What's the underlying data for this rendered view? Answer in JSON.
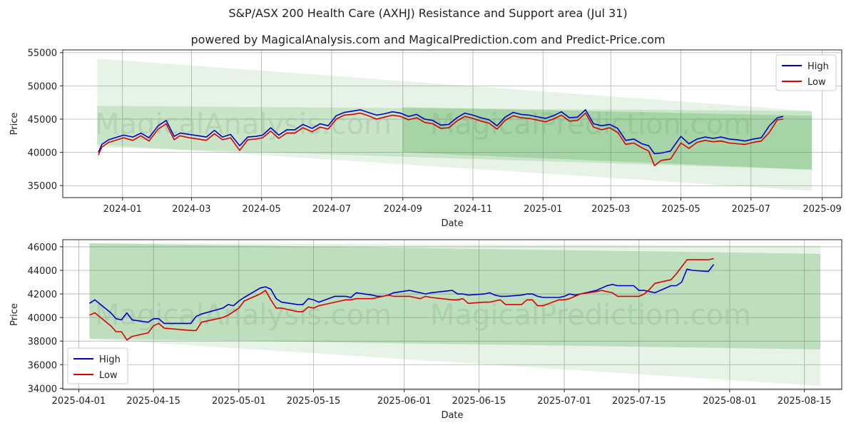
{
  "title": "S&P/ASX 200 Health Care (AXHJ) Resistance and Support area (Jul 31)",
  "subtitle": "powered by MagicalAnalysis.com and MagicalPrediction.com and Predict-Price.com",
  "watermarks": [
    "MagicalAnalysis.com",
    "MagicalPrediction.com"
  ],
  "colors": {
    "high": "#0000cc",
    "low": "#dd0000",
    "band": "#2e9a2e",
    "grid": "#b0b0b0"
  },
  "chart_data": [
    {
      "type": "line",
      "xlabel": "Date",
      "ylabel": "Price",
      "x_ticks": [
        "2024-01",
        "2024-03",
        "2024-05",
        "2024-07",
        "2024-09",
        "2024-11",
        "2025-01",
        "2025-03",
        "2025-05",
        "2025-07",
        "2025-09"
      ],
      "y_ticks": [
        35000,
        40000,
        45000,
        50000,
        55000
      ],
      "xlim": [
        "2023-11-10",
        "2025-09-18"
      ],
      "ylim": [
        33200,
        55400
      ],
      "grid": true,
      "legend": {
        "position": "top-right",
        "entries": [
          "High",
          "Low"
        ]
      },
      "bands": [
        {
          "name": "wide band",
          "shade": "light",
          "x": [
            "2023-12-10",
            "2025-08-23"
          ],
          "upper": [
            54100,
            46200
          ],
          "lower": [
            41200,
            34200
          ]
        },
        {
          "name": "medium band",
          "shade": "medium",
          "x": [
            "2023-12-10",
            "2025-08-23"
          ],
          "upper": [
            47000,
            46200
          ],
          "lower": [
            40800,
            37400
          ]
        },
        {
          "name": "inner band",
          "shade": "dark",
          "x": [
            "2024-09-01",
            "2025-08-23"
          ],
          "upper": [
            46800,
            45500
          ],
          "lower": [
            40000,
            37400
          ]
        }
      ],
      "series": [
        {
          "name": "High",
          "x": [
            "2023-12-11",
            "2023-12-14",
            "2023-12-20",
            "2024-01-02",
            "2024-01-10",
            "2024-01-17",
            "2024-01-24",
            "2024-02-01",
            "2024-02-08",
            "2024-02-15",
            "2024-02-20",
            "2024-02-28",
            "2024-03-07",
            "2024-03-14",
            "2024-03-21",
            "2024-03-28",
            "2024-04-04",
            "2024-04-12",
            "2024-04-19",
            "2024-04-26",
            "2024-05-02",
            "2024-05-09",
            "2024-05-16",
            "2024-05-23",
            "2024-05-30",
            "2024-06-06",
            "2024-06-14",
            "2024-06-21",
            "2024-06-28",
            "2024-07-05",
            "2024-07-12",
            "2024-07-19",
            "2024-07-26",
            "2024-08-02",
            "2024-08-09",
            "2024-08-16",
            "2024-08-23",
            "2024-08-30",
            "2024-09-06",
            "2024-09-13",
            "2024-09-20",
            "2024-09-27",
            "2024-10-04",
            "2024-10-11",
            "2024-10-18",
            "2024-10-25",
            "2024-11-01",
            "2024-11-08",
            "2024-11-15",
            "2024-11-22",
            "2024-11-29",
            "2024-12-06",
            "2024-12-13",
            "2024-12-20",
            "2025-01-03",
            "2025-01-10",
            "2025-01-17",
            "2025-01-24",
            "2025-01-31",
            "2025-02-07",
            "2025-02-14",
            "2025-02-21",
            "2025-02-28",
            "2025-03-07",
            "2025-03-14",
            "2025-03-21",
            "2025-03-28",
            "2025-04-03",
            "2025-04-08",
            "2025-04-14",
            "2025-04-22",
            "2025-05-01",
            "2025-05-08",
            "2025-05-15",
            "2025-05-22",
            "2025-05-29",
            "2025-06-05",
            "2025-06-12",
            "2025-06-19",
            "2025-06-26",
            "2025-07-03",
            "2025-07-10",
            "2025-07-17",
            "2025-07-24",
            "2025-07-29"
          ],
          "values": [
            40000,
            41200,
            41900,
            42600,
            42300,
            42900,
            42200,
            44000,
            44800,
            42400,
            42900,
            42700,
            42500,
            42300,
            43300,
            42300,
            42700,
            41000,
            42300,
            42400,
            42600,
            43700,
            42600,
            43400,
            43400,
            44200,
            43600,
            44300,
            44000,
            45500,
            46000,
            46200,
            46400,
            46000,
            45600,
            45800,
            46100,
            45900,
            45400,
            45700,
            45000,
            44800,
            44100,
            44200,
            45200,
            45900,
            45600,
            45200,
            44900,
            44000,
            45300,
            46000,
            45700,
            45600,
            45100,
            45500,
            46100,
            45200,
            45300,
            46400,
            44300,
            44000,
            44200,
            43600,
            41800,
            42000,
            41300,
            41000,
            39800,
            39900,
            40200,
            42400,
            41300,
            42000,
            42300,
            42100,
            42300,
            42000,
            41900,
            41700,
            42000,
            42200,
            44000,
            45200,
            45400
          ]
        },
        {
          "name": "Low",
          "x": [
            "2023-12-11",
            "2023-12-14",
            "2023-12-20",
            "2024-01-02",
            "2024-01-10",
            "2024-01-17",
            "2024-01-24",
            "2024-02-01",
            "2024-02-08",
            "2024-02-15",
            "2024-02-20",
            "2024-02-28",
            "2024-03-07",
            "2024-03-14",
            "2024-03-21",
            "2024-03-28",
            "2024-04-04",
            "2024-04-12",
            "2024-04-19",
            "2024-04-26",
            "2024-05-02",
            "2024-05-09",
            "2024-05-16",
            "2024-05-23",
            "2024-05-30",
            "2024-06-06",
            "2024-06-14",
            "2024-06-21",
            "2024-06-28",
            "2024-07-05",
            "2024-07-12",
            "2024-07-19",
            "2024-07-26",
            "2024-08-02",
            "2024-08-09",
            "2024-08-16",
            "2024-08-23",
            "2024-08-30",
            "2024-09-06",
            "2024-09-13",
            "2024-09-20",
            "2024-09-27",
            "2024-10-04",
            "2024-10-11",
            "2024-10-18",
            "2024-10-25",
            "2024-11-01",
            "2024-11-08",
            "2024-11-15",
            "2024-11-22",
            "2024-11-29",
            "2024-12-06",
            "2024-12-13",
            "2024-12-20",
            "2025-01-03",
            "2025-01-10",
            "2025-01-17",
            "2025-01-24",
            "2025-01-31",
            "2025-02-07",
            "2025-02-14",
            "2025-02-21",
            "2025-02-28",
            "2025-03-07",
            "2025-03-14",
            "2025-03-21",
            "2025-03-28",
            "2025-04-03",
            "2025-04-08",
            "2025-04-14",
            "2025-04-22",
            "2025-05-01",
            "2025-05-08",
            "2025-05-15",
            "2025-05-22",
            "2025-05-29",
            "2025-06-05",
            "2025-06-12",
            "2025-06-19",
            "2025-06-26",
            "2025-07-03",
            "2025-07-10",
            "2025-07-17",
            "2025-07-24",
            "2025-07-29"
          ],
          "values": [
            39600,
            40800,
            41500,
            42200,
            41800,
            42500,
            41700,
            43500,
            44300,
            41900,
            42500,
            42200,
            42000,
            41800,
            42800,
            41900,
            42200,
            40300,
            41900,
            42000,
            42200,
            43200,
            42100,
            42900,
            42900,
            43700,
            43100,
            43800,
            43500,
            45000,
            45600,
            45700,
            45900,
            45500,
            45000,
            45300,
            45600,
            45400,
            44900,
            45200,
            44500,
            44300,
            43600,
            43700,
            44700,
            45400,
            45100,
            44700,
            44400,
            43500,
            44800,
            45500,
            45200,
            45100,
            44600,
            45000,
            45600,
            44700,
            44800,
            45900,
            43800,
            43400,
            43700,
            43000,
            41200,
            41400,
            40700,
            40200,
            38000,
            38800,
            39000,
            41400,
            40600,
            41500,
            41800,
            41600,
            41700,
            41400,
            41300,
            41200,
            41500,
            41700,
            43000,
            44900,
            45000
          ]
        }
      ]
    },
    {
      "type": "line",
      "xlabel": "Date",
      "ylabel": "Price",
      "x_ticks": [
        "2025-04-01",
        "2025-04-15",
        "2025-05-01",
        "2025-05-15",
        "2025-06-01",
        "2025-06-15",
        "2025-07-01",
        "2025-07-15",
        "2025-08-01",
        "2025-08-15"
      ],
      "y_ticks": [
        34000,
        36000,
        38000,
        40000,
        42000,
        44000,
        46000
      ],
      "xlim": [
        "2025-03-29",
        "2025-08-22"
      ],
      "ylim": [
        33900,
        46600
      ],
      "grid": true,
      "legend": {
        "position": "bottom-left",
        "entries": [
          "High",
          "Low"
        ]
      },
      "bands": [
        {
          "name": "outer band",
          "shade": "light",
          "x": [
            "2025-04-03",
            "2025-08-18"
          ],
          "upper": [
            46300,
            46100
          ],
          "lower": [
            38200,
            34200
          ]
        },
        {
          "name": "inner band",
          "shade": "dark",
          "x": [
            "2025-04-03",
            "2025-08-18"
          ],
          "upper": [
            46300,
            45400
          ],
          "lower": [
            38200,
            37300
          ]
        }
      ],
      "series": [
        {
          "name": "High",
          "x": [
            "2025-04-03",
            "2025-04-04",
            "2025-04-07",
            "2025-04-08",
            "2025-04-09",
            "2025-04-10",
            "2025-04-11",
            "2025-04-14",
            "2025-04-15",
            "2025-04-16",
            "2025-04-17",
            "2025-04-22",
            "2025-04-23",
            "2025-04-24",
            "2025-04-28",
            "2025-04-29",
            "2025-04-30",
            "2025-05-01",
            "2025-05-02",
            "2025-05-05",
            "2025-05-06",
            "2025-05-07",
            "2025-05-08",
            "2025-05-09",
            "2025-05-12",
            "2025-05-13",
            "2025-05-14",
            "2025-05-15",
            "2025-05-16",
            "2025-05-19",
            "2025-05-20",
            "2025-05-21",
            "2025-05-22",
            "2025-05-23",
            "2025-05-26",
            "2025-05-27",
            "2025-05-28",
            "2025-05-29",
            "2025-05-30",
            "2025-06-02",
            "2025-06-03",
            "2025-06-04",
            "2025-06-05",
            "2025-06-06",
            "2025-06-10",
            "2025-06-11",
            "2025-06-12",
            "2025-06-13",
            "2025-06-16",
            "2025-06-17",
            "2025-06-18",
            "2025-06-19",
            "2025-06-20",
            "2025-06-23",
            "2025-06-24",
            "2025-06-25",
            "2025-06-26",
            "2025-06-27",
            "2025-06-30",
            "2025-07-01",
            "2025-07-02",
            "2025-07-03",
            "2025-07-04",
            "2025-07-07",
            "2025-07-08",
            "2025-07-09",
            "2025-07-10",
            "2025-07-11",
            "2025-07-14",
            "2025-07-15",
            "2025-07-16",
            "2025-07-17",
            "2025-07-18",
            "2025-07-21",
            "2025-07-22",
            "2025-07-23",
            "2025-07-24",
            "2025-07-25",
            "2025-07-28",
            "2025-07-29"
          ],
          "values": [
            41200,
            41500,
            40400,
            39900,
            39800,
            40400,
            39800,
            39600,
            39900,
            39900,
            39500,
            39500,
            40100,
            40300,
            40800,
            41100,
            41000,
            41400,
            41700,
            42500,
            42600,
            42400,
            41600,
            41300,
            41100,
            41100,
            41600,
            41500,
            41300,
            41800,
            41800,
            41800,
            41700,
            42100,
            41900,
            41800,
            41800,
            41900,
            42100,
            42300,
            42200,
            42100,
            42000,
            42100,
            42300,
            42000,
            42000,
            41900,
            42000,
            42100,
            41900,
            41800,
            41800,
            41900,
            42000,
            42000,
            41800,
            41700,
            41700,
            41800,
            42000,
            41900,
            42000,
            42300,
            42500,
            42700,
            42800,
            42700,
            42700,
            42300,
            42300,
            42200,
            42100,
            42700,
            42700,
            43000,
            44100,
            44000,
            43900,
            44500
          ]
        },
        {
          "name": "Low",
          "x": [
            "2025-04-03",
            "2025-04-04",
            "2025-04-07",
            "2025-04-08",
            "2025-04-09",
            "2025-04-10",
            "2025-04-11",
            "2025-04-14",
            "2025-04-15",
            "2025-04-16",
            "2025-04-17",
            "2025-04-22",
            "2025-04-23",
            "2025-04-24",
            "2025-04-28",
            "2025-04-29",
            "2025-04-30",
            "2025-05-01",
            "2025-05-02",
            "2025-05-05",
            "2025-05-06",
            "2025-05-07",
            "2025-05-08",
            "2025-05-09",
            "2025-05-12",
            "2025-05-13",
            "2025-05-14",
            "2025-05-15",
            "2025-05-16",
            "2025-05-19",
            "2025-05-20",
            "2025-05-21",
            "2025-05-22",
            "2025-05-23",
            "2025-05-26",
            "2025-05-27",
            "2025-05-28",
            "2025-05-29",
            "2025-05-30",
            "2025-06-02",
            "2025-06-03",
            "2025-06-04",
            "2025-06-05",
            "2025-06-06",
            "2025-06-10",
            "2025-06-11",
            "2025-06-12",
            "2025-06-13",
            "2025-06-16",
            "2025-06-17",
            "2025-06-18",
            "2025-06-19",
            "2025-06-20",
            "2025-06-23",
            "2025-06-24",
            "2025-06-25",
            "2025-06-26",
            "2025-06-27",
            "2025-06-30",
            "2025-07-01",
            "2025-07-02",
            "2025-07-03",
            "2025-07-04",
            "2025-07-07",
            "2025-07-08",
            "2025-07-09",
            "2025-07-10",
            "2025-07-11",
            "2025-07-14",
            "2025-07-15",
            "2025-07-16",
            "2025-07-17",
            "2025-07-18",
            "2025-07-21",
            "2025-07-22",
            "2025-07-23",
            "2025-07-24",
            "2025-07-25",
            "2025-07-28",
            "2025-07-29"
          ],
          "values": [
            40200,
            40400,
            39300,
            38800,
            38800,
            38100,
            38400,
            38700,
            39300,
            39500,
            39100,
            38900,
            38900,
            39600,
            40000,
            40200,
            40500,
            40800,
            41400,
            42000,
            42300,
            41500,
            40800,
            40800,
            40500,
            40500,
            40900,
            40800,
            41000,
            41300,
            41400,
            41500,
            41500,
            41600,
            41600,
            41700,
            41800,
            41900,
            41800,
            41800,
            41700,
            41600,
            41800,
            41700,
            41500,
            41500,
            41600,
            41200,
            41300,
            41300,
            41400,
            41500,
            41100,
            41100,
            41500,
            41500,
            41000,
            41000,
            41500,
            41500,
            41600,
            41800,
            42000,
            42200,
            42300,
            42200,
            42100,
            41800,
            41800,
            41800,
            42000,
            42400,
            42900,
            43200,
            43700,
            44300,
            44900,
            44900,
            44900,
            45000
          ]
        }
      ]
    }
  ]
}
